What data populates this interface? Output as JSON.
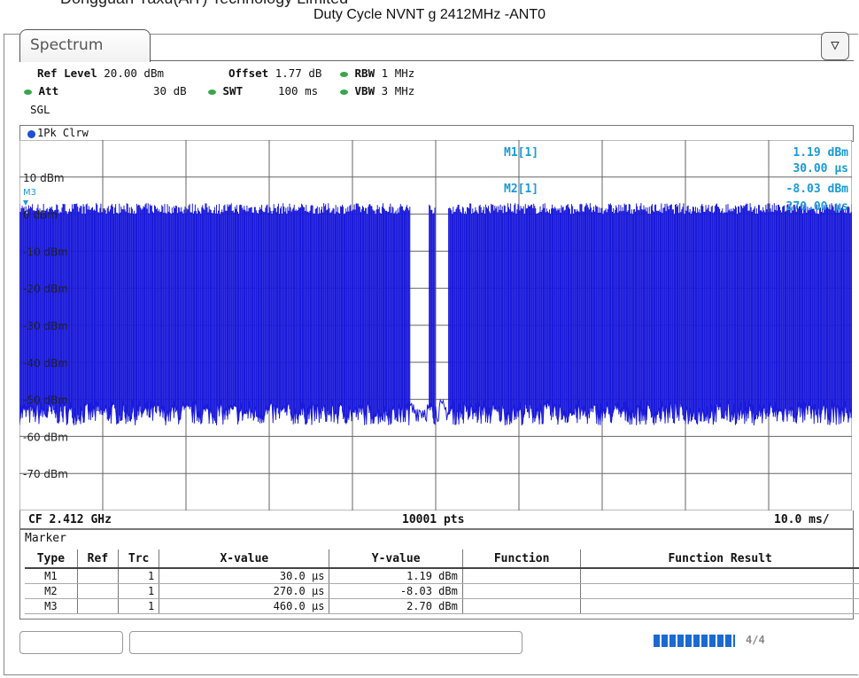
{
  "report": {
    "company_clipped": "Dongguan Yaxu(AiT) Technology Limited",
    "title": "Duty Cycle NVNT g 2412MHz -ANT0"
  },
  "tab": {
    "label": "Spectrum",
    "icon": "panel-toggle-icon"
  },
  "settings": {
    "ref_level_label": "Ref Level",
    "ref_level_value": "20.00 dBm",
    "offset_label": "Offset",
    "offset_value": "1.77 dB",
    "rbw_label": "RBW",
    "rbw_value": "1 MHz",
    "att_label": "Att",
    "att_value": "30 dB",
    "swt_label": "SWT",
    "swt_value": "100 ms",
    "vbw_label": "VBW",
    "vbw_value": "3 MHz",
    "mode": "SGL"
  },
  "trace": {
    "label": "1Pk Clrw",
    "color": "#1a1adb"
  },
  "markers_readout": {
    "m1_label": "M1[1]",
    "m1_level": "1.19 dBm",
    "m1_time": "30.00 µs",
    "m2_label": "M2[1]",
    "m2_level": "-8.03 dBm",
    "m2_time": "270.00 µs",
    "m3_label": "M3"
  },
  "chart_data": {
    "type": "line",
    "title": "Duty Cycle NVNT g 2412MHz -ANT0",
    "xlabel": "",
    "ylabel": "",
    "y_tick_labels": [
      "10 dBm",
      "0 dBm",
      "-10 dBm",
      "-20 dBm",
      "-30 dBm",
      "-40 dBm",
      "-50 dBm",
      "-60 dBm",
      "-70 dBm"
    ],
    "y_ticks_dbm": [
      10,
      0,
      -10,
      -20,
      -30,
      -40,
      -50,
      -60,
      -70
    ],
    "ylim": [
      -80,
      20
    ],
    "x_start_ms": 0,
    "x_end_ms": 100,
    "x_div": "10.0 ms/",
    "points": 10001,
    "center_frequency": "CF 2.412 GHz",
    "pulse_high_dbm": [
      0,
      3
    ],
    "noise_floor_dbm": [
      -56,
      -50
    ],
    "gap_ms": [
      [
        47.0,
        49.2
      ],
      [
        50.0,
        51.5
      ]
    ],
    "markers": [
      {
        "name": "M1",
        "x_us": 30.0,
        "y_dbm": 1.19
      },
      {
        "name": "M2",
        "x_us": 270.0,
        "y_dbm": -8.03
      },
      {
        "name": "M3",
        "x_us": 460.0,
        "y_dbm": 2.7
      }
    ],
    "grid": true
  },
  "bottom": {
    "cf": "CF 2.412 GHz",
    "pts": "10001 pts",
    "div": "10.0 ms/"
  },
  "marker_table": {
    "title": "Marker",
    "headers": [
      "Type",
      "Ref",
      "Trc",
      "X-value",
      "Y-value",
      "Function",
      "Function Result"
    ],
    "rows": [
      [
        "M1",
        "",
        "1",
        "30.0 µs",
        "1.19 dBm",
        "",
        ""
      ],
      [
        "M2",
        "",
        "1",
        "270.0 µs",
        "-8.03 dBm",
        "",
        ""
      ],
      [
        "M3",
        "",
        "1",
        "460.0 µs",
        "2.70 dBm",
        "",
        ""
      ]
    ]
  },
  "status": {
    "progress_label": "4/4",
    "progress": 1.0
  }
}
